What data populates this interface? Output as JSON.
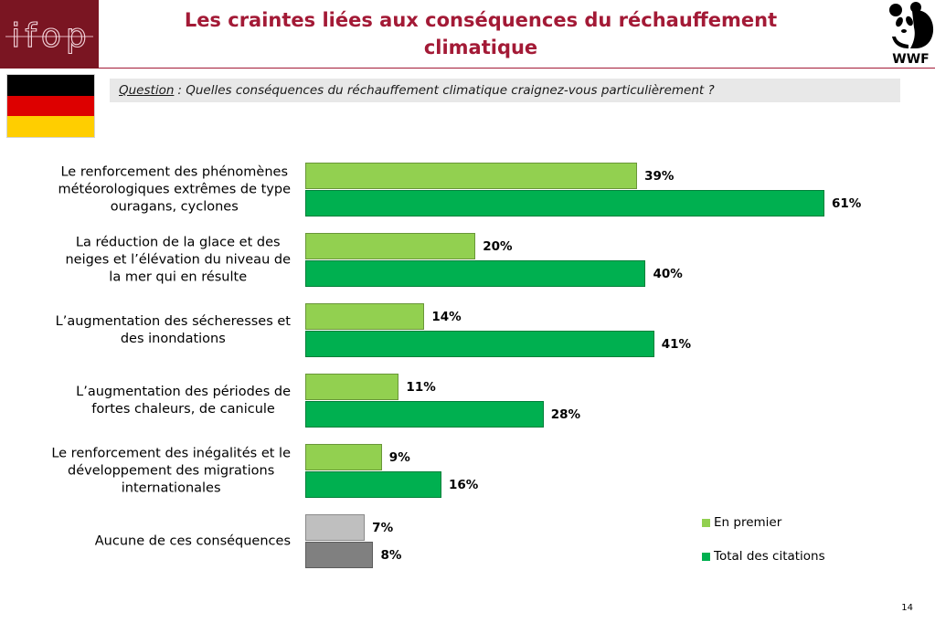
{
  "header": {
    "logo_left": "ifop",
    "title": "Les craintes liées aux conséquences du réchauffement climatique",
    "logo_right": "WWF",
    "logo_right_icon": "panda-icon"
  },
  "flag": {
    "icon": "germany-flag-icon",
    "stripe_colors": [
      "#000000",
      "#dd0000",
      "#ffce00"
    ]
  },
  "question": {
    "label": "Question",
    "text": ": Quelles conséquences du réchauffement climatique craignez-vous particulièrement ?"
  },
  "theme": {
    "brand_maroon": "#7a1522",
    "title_color": "#a31a36",
    "question_background": "#e8e8e8"
  },
  "chart_data": {
    "type": "bar",
    "orientation": "horizontal",
    "grid": false,
    "legend_position": "bottom-right",
    "categories": [
      "Le renforcement des phénomènes\nmétéorologiques extrêmes de type\nouragans, cyclones",
      "La réduction de la glace et des\nneiges et l’élévation du niveau de\nla mer qui en résulte",
      "L’augmentation des sécheresses et\ndes inondations",
      "L’augmentation des périodes de\nfortes chaleurs, de canicule",
      "Le renforcement des inégalités et le\ndéveloppement des migrations\ninternationales",
      "Aucune de ces conséquences"
    ],
    "series": [
      {
        "name": "En premier",
        "color": "#92d050",
        "values": [
          39,
          20,
          14,
          11,
          9,
          7
        ],
        "labels": [
          "39%",
          "20%",
          "14%",
          "11%",
          "9%",
          "7%"
        ],
        "point_colors": [
          null,
          null,
          null,
          null,
          null,
          "#bfbfbf"
        ]
      },
      {
        "name": "Total des citations",
        "color": "#00b050",
        "values": [
          61,
          40,
          41,
          28,
          16,
          8
        ],
        "labels": [
          "61%",
          "40%",
          "41%",
          "28%",
          "16%",
          "8%"
        ],
        "point_colors": [
          null,
          null,
          null,
          null,
          null,
          "#808080"
        ]
      }
    ]
  },
  "footer": {
    "page_number": "14"
  }
}
